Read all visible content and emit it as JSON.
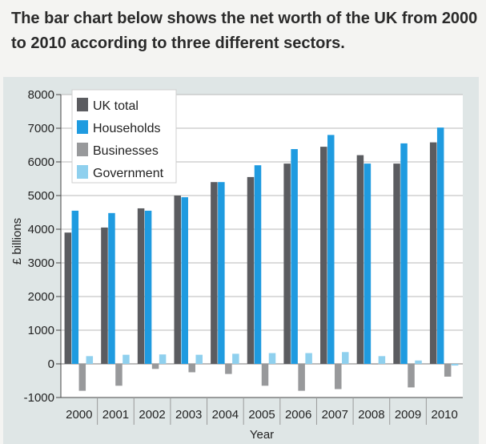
{
  "caption": "The bar chart below shows the net worth of the UK from 2000 to 2010 according to three different sectors.",
  "chart_data": {
    "type": "bar",
    "title": "",
    "xlabel": "Year",
    "ylabel": "£ billions",
    "ylim": [
      -1000,
      8000
    ],
    "yticks": [
      -1000,
      0,
      1000,
      2000,
      3000,
      4000,
      5000,
      6000,
      7000,
      8000
    ],
    "grid": true,
    "legend": "top-left",
    "categories": [
      "2000",
      "2001",
      "2002",
      "2003",
      "2004",
      "2005",
      "2006",
      "2007",
      "2008",
      "2009",
      "2010"
    ],
    "series": [
      {
        "name": "UK total",
        "color": "#5b5c60",
        "values": [
          3900,
          4050,
          4620,
          5000,
          5400,
          5550,
          5950,
          6450,
          6200,
          5950,
          6580
        ]
      },
      {
        "name": "Households",
        "color": "#1f9be0",
        "values": [
          4550,
          4480,
          4550,
          4950,
          5400,
          5900,
          6380,
          6800,
          5950,
          6550,
          7020
        ]
      },
      {
        "name": "Businesses",
        "color": "#98999b",
        "values": [
          -800,
          -650,
          -150,
          -250,
          -300,
          -650,
          -800,
          -750,
          0,
          -700,
          -380
        ]
      },
      {
        "name": "Government",
        "color": "#8fd0ee",
        "values": [
          230,
          270,
          280,
          270,
          300,
          320,
          320,
          350,
          230,
          100,
          -50
        ]
      }
    ]
  }
}
